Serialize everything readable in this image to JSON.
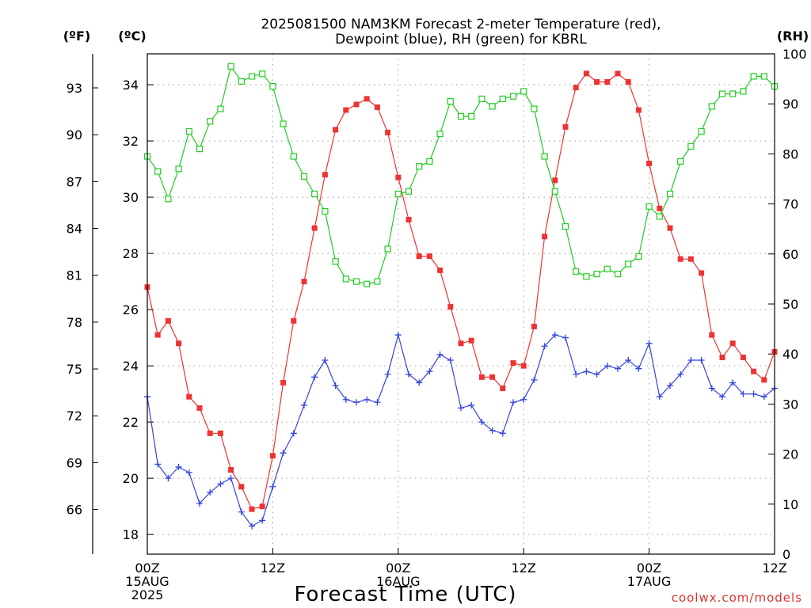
{
  "title_line1": "2025081500 NAM3KM Forecast 2-meter Temperature (red),",
  "title_line2": "Dewpoint (blue), RH (green) for KBRL",
  "unit_f": "(ºF)",
  "unit_c": "(ºC)",
  "unit_rh": "(RH)",
  "xlabel": "Forecast Time (UTC)",
  "credit": "coolwx.com/models",
  "chart_data": {
    "type": "line",
    "x_unit": "forecast hour",
    "xlim": [
      0,
      60
    ],
    "x_ticks": [
      {
        "x": 0,
        "lines": [
          "00Z",
          "15AUG",
          "2025"
        ]
      },
      {
        "x": 12,
        "lines": [
          "12Z"
        ]
      },
      {
        "x": 24,
        "lines": [
          "00Z",
          "16AUG"
        ]
      },
      {
        "x": 36,
        "lines": [
          "12Z"
        ]
      },
      {
        "x": 48,
        "lines": [
          "00Z",
          "17AUG"
        ]
      },
      {
        "x": 60,
        "lines": [
          "12Z"
        ]
      }
    ],
    "y_left_c": {
      "range": [
        17.3,
        35.1
      ],
      "ticks": [
        18,
        20,
        22,
        24,
        26,
        28,
        30,
        32,
        34
      ]
    },
    "y_left_f": {
      "ticks": [
        66,
        69,
        72,
        75,
        78,
        81,
        84,
        87,
        90,
        93
      ]
    },
    "y_right_rh": {
      "range": [
        0,
        100
      ],
      "ticks": [
        0,
        10,
        20,
        30,
        40,
        50,
        60,
        70,
        80,
        90,
        100
      ]
    },
    "grid": true,
    "series": [
      {
        "name": "Temperature",
        "color": "#ee3333",
        "axis": "C",
        "marker": "filled-square",
        "values": [
          26.8,
          25.1,
          25.6,
          24.8,
          22.9,
          22.5,
          21.6,
          21.6,
          20.3,
          19.7,
          18.9,
          19.0,
          20.8,
          23.4,
          25.6,
          27.0,
          28.9,
          30.8,
          32.4,
          33.1,
          33.3,
          33.5,
          33.2,
          32.3,
          30.7,
          29.2,
          27.9,
          27.9,
          27.4,
          26.1,
          24.8,
          24.9,
          23.6,
          23.6,
          23.2,
          24.1,
          24.0,
          25.4,
          28.6,
          30.6,
          32.5,
          33.9,
          34.4,
          34.1,
          34.1,
          34.4,
          34.1,
          33.1,
          31.2,
          29.6,
          28.9,
          27.8,
          27.8,
          27.3,
          25.1,
          24.3,
          24.8,
          24.3,
          23.8,
          23.5,
          24.5
        ]
      },
      {
        "name": "Dewpoint",
        "color": "#3344dd",
        "axis": "C",
        "marker": "plus",
        "values": [
          22.9,
          20.5,
          20.0,
          20.4,
          20.2,
          19.1,
          19.5,
          19.8,
          20.0,
          18.8,
          18.3,
          18.5,
          19.7,
          20.9,
          21.6,
          22.6,
          23.6,
          24.2,
          23.3,
          22.8,
          22.7,
          22.8,
          22.7,
          23.7,
          25.1,
          23.7,
          23.4,
          23.8,
          24.4,
          24.2,
          22.5,
          22.6,
          22.0,
          21.7,
          21.6,
          22.7,
          22.8,
          23.5,
          24.7,
          25.1,
          25.0,
          23.7,
          23.8,
          23.7,
          24.0,
          23.9,
          24.2,
          23.9,
          24.8,
          22.9,
          23.3,
          23.7,
          24.2,
          24.2,
          23.2,
          22.9,
          23.4,
          23.0,
          23.0,
          22.9,
          23.2
        ]
      },
      {
        "name": "RH",
        "color": "#22cc22",
        "axis": "RH",
        "marker": "open-square",
        "values": [
          79.5,
          76.5,
          71.0,
          77.0,
          84.5,
          81.0,
          86.5,
          89.0,
          97.5,
          94.5,
          95.5,
          96.0,
          93.5,
          86.0,
          79.5,
          75.5,
          72.0,
          68.5,
          58.5,
          55.0,
          54.5,
          54.0,
          54.5,
          61.0,
          72.0,
          72.5,
          77.5,
          78.5,
          84.0,
          90.5,
          87.5,
          87.5,
          91.0,
          89.5,
          91.0,
          91.5,
          92.5,
          89.0,
          79.5,
          72.5,
          65.5,
          56.5,
          55.5,
          56.0,
          57.0,
          56.0,
          58.0,
          59.5,
          69.5,
          67.5,
          72.0,
          78.5,
          81.5,
          84.5,
          89.5,
          92.0,
          92.0,
          92.5,
          95.5,
          95.5,
          93.5
        ]
      }
    ]
  }
}
